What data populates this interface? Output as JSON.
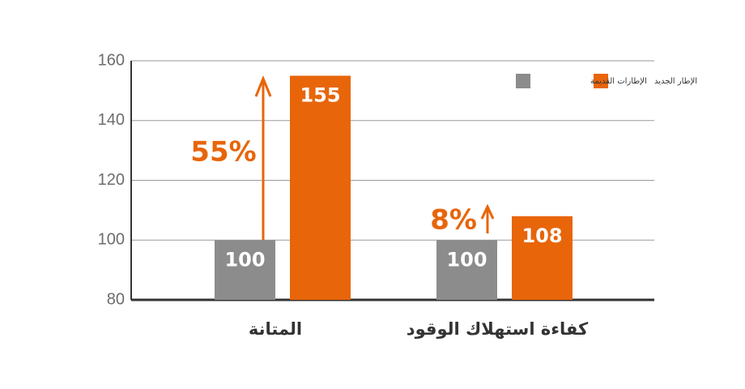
{
  "chart_data": {
    "type": "bar",
    "categories": [
      "المتانة",
      "كفاءة استهلاك الوقود"
    ],
    "series": [
      {
        "name": "الإطارات القديمة",
        "color": "#8c8c8c",
        "values": [
          100,
          100
        ]
      },
      {
        "name": "الإطار الجديد",
        "color": "#e8650a",
        "values": [
          155,
          108
        ]
      }
    ],
    "annotations": [
      "55%",
      "8%"
    ],
    "ylim": [
      80,
      160
    ],
    "yticks": [
      80,
      100,
      120,
      140,
      160
    ],
    "grid": true
  }
}
